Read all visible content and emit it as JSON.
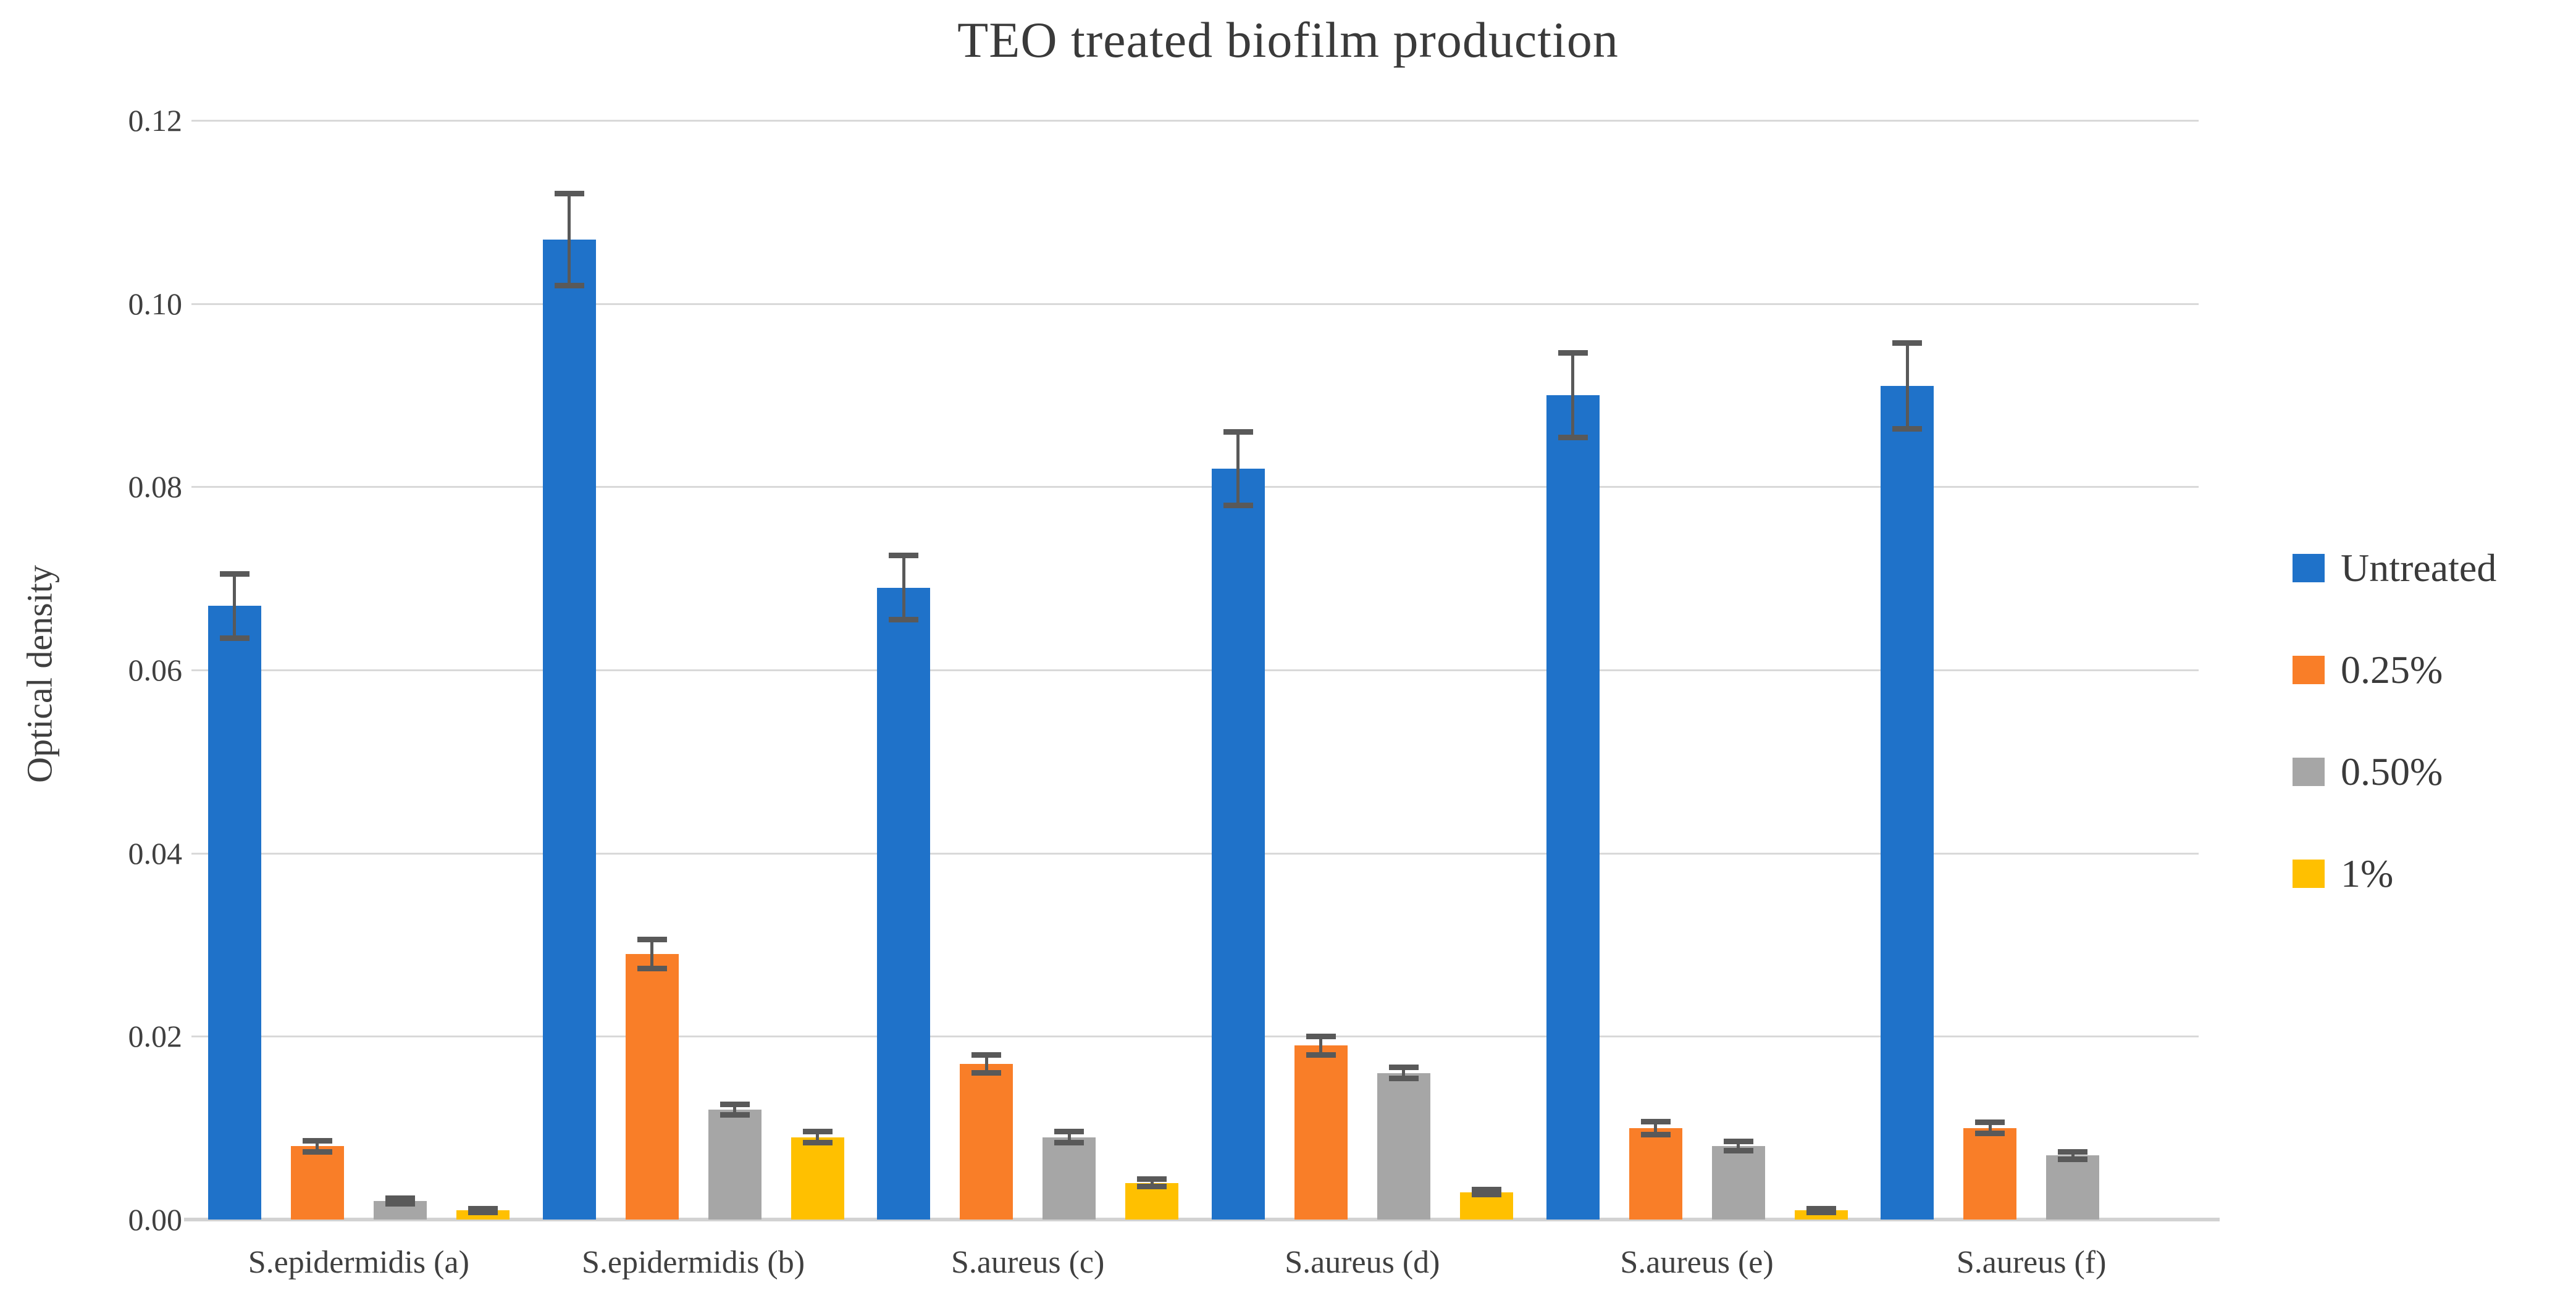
{
  "chart_data": {
    "type": "bar",
    "title": "TEO treated biofilm production",
    "xlabel": "",
    "ylabel": "Optical density",
    "ylim": [
      0,
      0.12
    ],
    "ytick_step": 0.02,
    "ytick_labels": [
      "0.00",
      "0.02",
      "0.04",
      "0.06",
      "0.08",
      "0.10",
      "0.12"
    ],
    "grid": true,
    "legend_position": "right",
    "categories": [
      "S.epidermidis (a)",
      "S.epidermidis (b)",
      "S.aureus (c)",
      "S.aureus (d)",
      "S.aureus (e)",
      "S.aureus (f)"
    ],
    "series": [
      {
        "name": "Untreated",
        "color": "#1f72c9",
        "values": [
          0.067,
          0.107,
          0.069,
          0.082,
          0.09,
          0.091
        ],
        "errors": [
          0.0035,
          0.005,
          0.0035,
          0.004,
          0.0046,
          0.0047
        ]
      },
      {
        "name": "0.25%",
        "color": "#f97e28",
        "values": [
          0.008,
          0.029,
          0.017,
          0.019,
          0.01,
          0.01
        ],
        "errors": [
          0.0006,
          0.0016,
          0.001,
          0.001,
          0.0007,
          0.0006
        ]
      },
      {
        "name": "0.50%",
        "color": "#a6a6a6",
        "values": [
          0.002,
          0.012,
          0.009,
          0.016,
          0.008,
          0.007
        ],
        "errors": [
          0.0003,
          0.0006,
          0.0006,
          0.0006,
          0.0005,
          0.0004
        ]
      },
      {
        "name": "1%",
        "color": "#ffc000",
        "values": [
          0.001,
          0.009,
          0.004,
          0.003,
          0.001,
          null
        ],
        "errors": [
          0.0002,
          0.0006,
          0.0004,
          0.0003,
          0.0002,
          null
        ]
      }
    ],
    "colors": {
      "error_bar": "#595959",
      "gridline": "#d9d9d9",
      "baseline": "#d2d2d2",
      "text": "#404040",
      "background": "#ffffff"
    }
  }
}
